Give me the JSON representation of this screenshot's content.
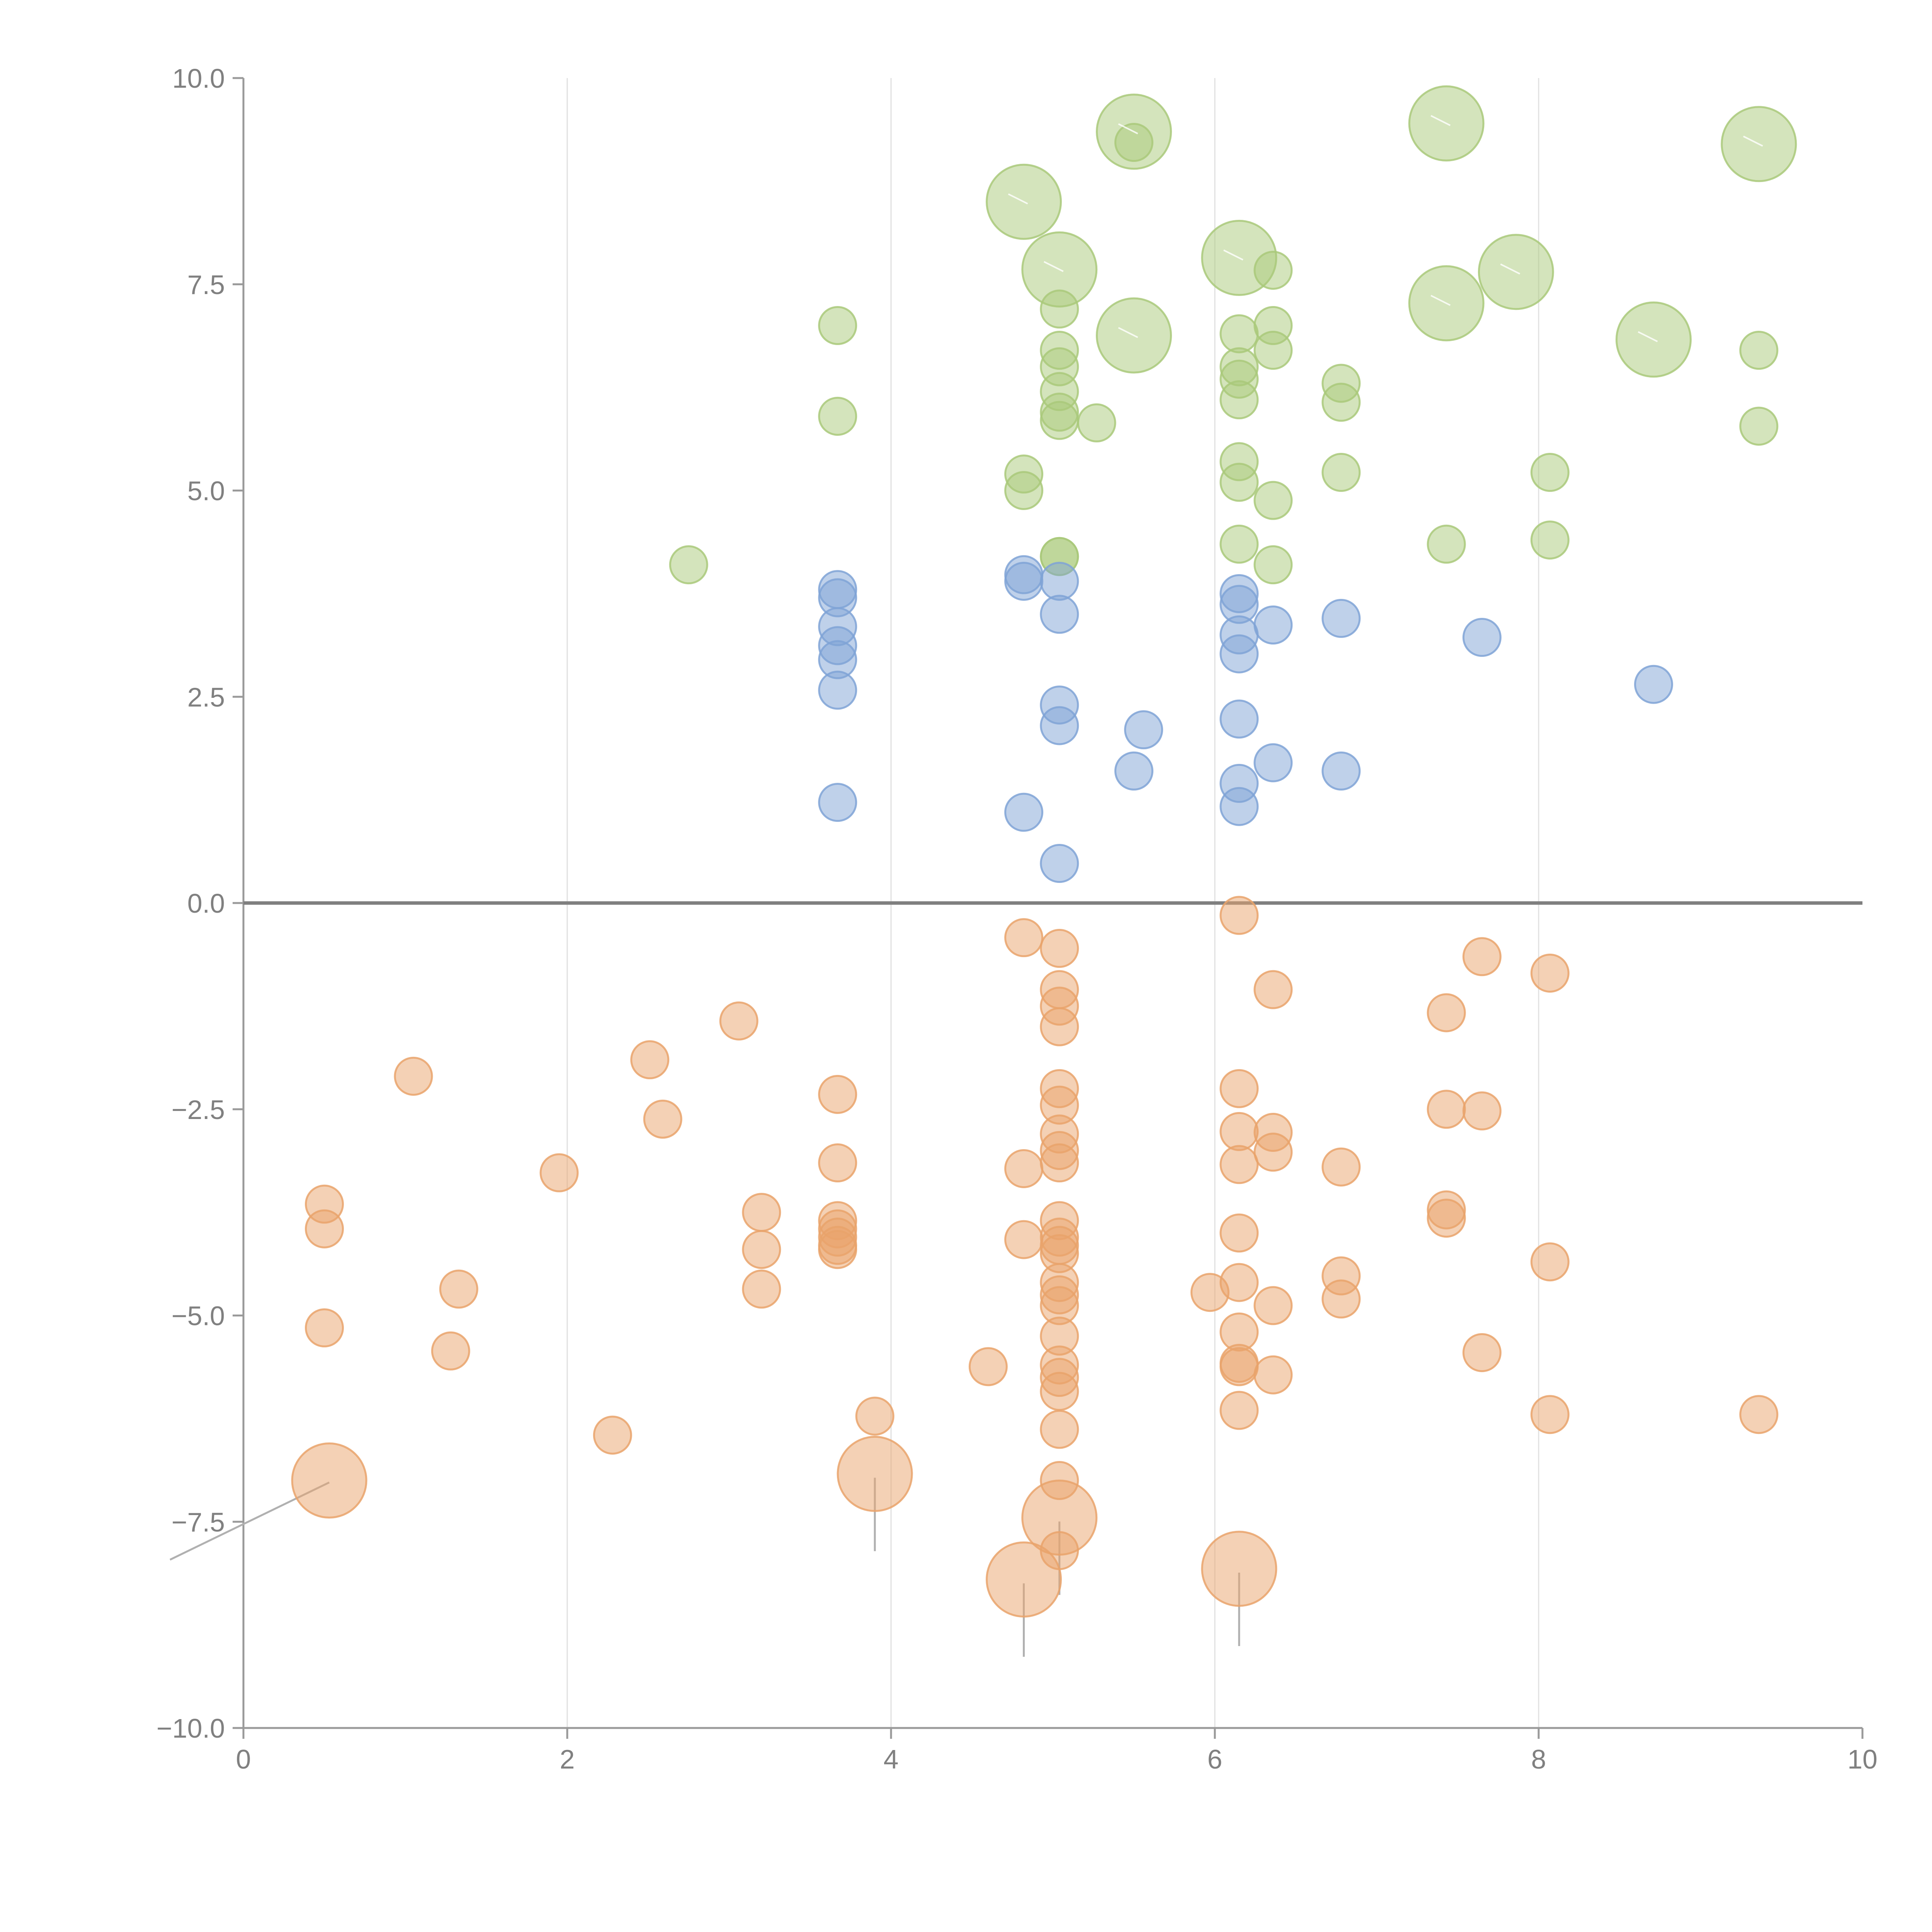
{
  "chart_data": {
    "type": "scatter",
    "title": "",
    "xlabel": "",
    "ylabel": "",
    "xlim": [
      0,
      10
    ],
    "ylim": [
      -10,
      10
    ],
    "x_ticks": [
      0,
      2,
      4,
      6,
      8,
      10
    ],
    "x_tick_labels": [
      "0",
      "2",
      "4",
      "6",
      "8",
      "10"
    ],
    "y_ticks": [
      10,
      7.5,
      5,
      2.5,
      0,
      -2.5,
      -5,
      -7.5,
      -10
    ],
    "y_tick_labels": [
      "10.0",
      "7.5",
      "5.0",
      "2.5",
      "0.0",
      "−2.5",
      "−5.0",
      "−7.5",
      "−10.0"
    ],
    "vertical_gridlines_at": [
      2,
      4,
      6,
      8
    ],
    "reference_line_y": 0,
    "colors": {
      "green": "#a9c97a",
      "blue": "#7fa3d6",
      "orange": "#e9a36b",
      "axis": "#9a9a9a",
      "grid": "#e0e0e0",
      "zero_line": "#7f7f7f"
    },
    "series": [
      {
        "name": "green",
        "color": "#a9c97a",
        "points": [
          [
            2.75,
            4.1
          ],
          [
            3.67,
            7.0
          ],
          [
            3.67,
            5.9
          ],
          [
            4.82,
            5.2
          ],
          [
            4.82,
            5.0
          ],
          [
            5.04,
            7.2
          ],
          [
            5.04,
            6.7
          ],
          [
            5.04,
            6.5
          ],
          [
            5.04,
            6.2
          ],
          [
            5.04,
            5.95
          ],
          [
            5.04,
            5.85
          ],
          [
            5.04,
            4.2
          ],
          [
            5.04,
            4.2
          ],
          [
            5.27,
            5.82
          ],
          [
            5.5,
            9.22
          ],
          [
            6.15,
            6.9
          ],
          [
            6.15,
            6.5
          ],
          [
            6.15,
            6.35
          ],
          [
            6.15,
            6.1
          ],
          [
            6.15,
            5.35
          ],
          [
            6.15,
            5.1
          ],
          [
            6.15,
            4.35
          ],
          [
            6.36,
            7.67
          ],
          [
            6.36,
            7.0
          ],
          [
            6.36,
            6.7
          ],
          [
            6.36,
            4.88
          ],
          [
            6.36,
            4.1
          ],
          [
            6.78,
            6.3
          ],
          [
            6.78,
            6.07
          ],
          [
            6.78,
            5.22
          ],
          [
            7.43,
            4.35
          ],
          [
            8.07,
            5.22
          ],
          [
            8.07,
            4.4
          ],
          [
            9.36,
            6.7
          ],
          [
            9.36,
            5.78
          ]
        ],
        "highlighted_points": [
          [
            4.82,
            8.5
          ],
          [
            5.04,
            7.68
          ],
          [
            5.5,
            9.35
          ],
          [
            5.5,
            6.88
          ],
          [
            6.15,
            7.82
          ],
          [
            7.43,
            9.45
          ],
          [
            7.43,
            7.27
          ],
          [
            7.86,
            7.65
          ],
          [
            8.71,
            6.83
          ],
          [
            9.36,
            9.2
          ]
        ]
      },
      {
        "name": "blue",
        "color": "#7fa3d6",
        "points": [
          [
            3.67,
            3.8
          ],
          [
            3.67,
            3.7
          ],
          [
            3.67,
            3.35
          ],
          [
            3.67,
            3.12
          ],
          [
            3.67,
            2.95
          ],
          [
            3.67,
            2.58
          ],
          [
            3.67,
            1.22
          ],
          [
            4.82,
            3.98
          ],
          [
            4.82,
            3.9
          ],
          [
            4.82,
            1.1
          ],
          [
            5.04,
            3.9
          ],
          [
            5.04,
            3.5
          ],
          [
            5.04,
            2.4
          ],
          [
            5.04,
            2.15
          ],
          [
            5.04,
            0.48
          ],
          [
            5.5,
            1.6
          ],
          [
            5.56,
            2.1
          ],
          [
            6.15,
            3.75
          ],
          [
            6.15,
            3.62
          ],
          [
            6.15,
            3.25
          ],
          [
            6.15,
            3.02
          ],
          [
            6.15,
            2.23
          ],
          [
            6.15,
            1.45
          ],
          [
            6.15,
            1.17
          ],
          [
            6.36,
            3.37
          ],
          [
            6.36,
            1.7
          ],
          [
            6.78,
            3.45
          ],
          [
            6.78,
            1.6
          ],
          [
            7.65,
            3.22
          ],
          [
            8.71,
            2.65
          ]
        ]
      },
      {
        "name": "orange",
        "color": "#e9a36b",
        "points": [
          [
            0.5,
            -3.65
          ],
          [
            0.5,
            -3.95
          ],
          [
            0.5,
            -5.15
          ],
          [
            1.05,
            -2.1
          ],
          [
            1.28,
            -5.43
          ],
          [
            1.33,
            -4.68
          ],
          [
            1.95,
            -3.27
          ],
          [
            2.28,
            -6.45
          ],
          [
            2.51,
            -1.9
          ],
          [
            2.59,
            -2.62
          ],
          [
            3.06,
            -1.43
          ],
          [
            3.2,
            -3.75
          ],
          [
            3.2,
            -4.2
          ],
          [
            3.2,
            -4.68
          ],
          [
            3.67,
            -2.32
          ],
          [
            3.67,
            -3.15
          ],
          [
            3.67,
            -3.85
          ],
          [
            3.67,
            -3.95
          ],
          [
            3.67,
            -4.05
          ],
          [
            3.67,
            -4.15
          ],
          [
            3.67,
            -4.2
          ],
          [
            3.9,
            -6.22
          ],
          [
            4.6,
            -5.62
          ],
          [
            4.82,
            -0.42
          ],
          [
            4.82,
            -3.22
          ],
          [
            4.82,
            -4.08
          ],
          [
            5.04,
            -0.55
          ],
          [
            5.04,
            -1.05
          ],
          [
            5.04,
            -1.25
          ],
          [
            5.04,
            -1.5
          ],
          [
            5.04,
            -2.25
          ],
          [
            5.04,
            -2.45
          ],
          [
            5.04,
            -2.8
          ],
          [
            5.04,
            -3.0
          ],
          [
            5.04,
            -3.15
          ],
          [
            5.04,
            -3.85
          ],
          [
            5.04,
            -4.05
          ],
          [
            5.04,
            -4.15
          ],
          [
            5.04,
            -4.25
          ],
          [
            5.04,
            -4.6
          ],
          [
            5.04,
            -4.75
          ],
          [
            5.04,
            -4.88
          ],
          [
            5.04,
            -5.25
          ],
          [
            5.04,
            -5.6
          ],
          [
            5.04,
            -5.75
          ],
          [
            5.04,
            -5.92
          ],
          [
            5.04,
            -6.38
          ],
          [
            5.04,
            -7.0
          ],
          [
            5.04,
            -7.85
          ],
          [
            5.97,
            -4.72
          ],
          [
            6.15,
            -0.15
          ],
          [
            6.15,
            -2.25
          ],
          [
            6.15,
            -2.77
          ],
          [
            6.15,
            -3.17
          ],
          [
            6.15,
            -4.0
          ],
          [
            6.15,
            -4.6
          ],
          [
            6.15,
            -5.2
          ],
          [
            6.15,
            -5.58
          ],
          [
            6.15,
            -5.62
          ],
          [
            6.15,
            -6.15
          ],
          [
            6.36,
            -1.05
          ],
          [
            6.36,
            -2.78
          ],
          [
            6.36,
            -3.02
          ],
          [
            6.36,
            -4.88
          ],
          [
            6.36,
            -5.72
          ],
          [
            6.78,
            -3.2
          ],
          [
            6.78,
            -4.52
          ],
          [
            6.78,
            -4.8
          ],
          [
            7.43,
            -1.33
          ],
          [
            7.43,
            -2.5
          ],
          [
            7.43,
            -3.72
          ],
          [
            7.43,
            -3.82
          ],
          [
            7.65,
            -0.65
          ],
          [
            7.65,
            -2.52
          ],
          [
            7.65,
            -5.45
          ],
          [
            8.07,
            -0.85
          ],
          [
            8.07,
            -4.35
          ],
          [
            8.07,
            -6.2
          ],
          [
            9.36,
            -6.2
          ]
        ],
        "highlighted_points": [
          [
            0.53,
            -7.0
          ],
          [
            3.9,
            -6.92
          ],
          [
            4.82,
            -8.2
          ],
          [
            5.04,
            -7.45
          ],
          [
            6.15,
            -8.07
          ]
        ]
      }
    ]
  }
}
